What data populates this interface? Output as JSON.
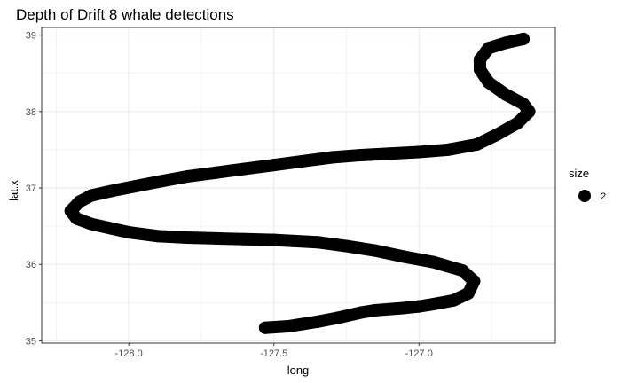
{
  "chart_data": {
    "type": "line",
    "title": "Depth of Drift 8 whale detections",
    "xlabel": "long",
    "ylabel": "lat.x",
    "xlim": [
      -128.3,
      -126.53
    ],
    "ylim": [
      34.97,
      39.1
    ],
    "x_ticks": [
      -128.0,
      -127.5,
      -127.0
    ],
    "x_tick_labels": [
      "-128.0",
      "-127.5",
      "-127.0"
    ],
    "y_ticks": [
      35,
      36,
      37,
      38,
      39
    ],
    "y_tick_labels": [
      "35",
      "36",
      "37",
      "38",
      "39"
    ],
    "grid": true,
    "legend": {
      "title": "size",
      "entries": [
        {
          "label": "2",
          "shape": "filled-circle"
        }
      ],
      "position": "right"
    },
    "colors": {
      "series": "#000000",
      "grid": "#ebebeb",
      "panel_border": "#333333"
    },
    "series": [
      {
        "x": [
          -127.53,
          -127.45,
          -127.4,
          -127.35,
          -127.28,
          -127.2,
          -127.15,
          -127.05,
          -127.0,
          -126.95,
          -126.88,
          -126.83,
          -126.81,
          -126.85,
          -126.95,
          -127.05,
          -127.15,
          -127.25,
          -127.35,
          -127.5,
          -127.6,
          -127.7,
          -127.8,
          -127.9,
          -128.0,
          -128.06,
          -128.13,
          -128.18,
          -128.2,
          -128.17,
          -128.13,
          -128.06,
          -127.98,
          -127.9,
          -127.8,
          -127.7,
          -127.6,
          -127.5,
          -127.4,
          -127.3,
          -127.2,
          -127.1,
          -127.0,
          -126.9,
          -126.8,
          -126.73,
          -126.66,
          -126.62,
          -126.64,
          -126.7,
          -126.76,
          -126.79,
          -126.79,
          -126.76,
          -126.7,
          -126.64
        ],
        "y": [
          35.17,
          35.19,
          35.22,
          35.25,
          35.3,
          35.37,
          35.4,
          35.43,
          35.45,
          35.48,
          35.53,
          35.62,
          35.78,
          35.92,
          36.03,
          36.1,
          36.18,
          36.24,
          36.29,
          36.32,
          36.33,
          36.34,
          36.35,
          36.37,
          36.42,
          36.47,
          36.53,
          36.6,
          36.7,
          36.82,
          36.9,
          36.96,
          37.02,
          37.08,
          37.15,
          37.2,
          37.25,
          37.3,
          37.35,
          37.4,
          37.43,
          37.45,
          37.47,
          37.5,
          37.57,
          37.7,
          37.85,
          38.0,
          38.1,
          38.22,
          38.38,
          38.55,
          38.68,
          38.83,
          38.9,
          38.95
        ]
      }
    ]
  }
}
